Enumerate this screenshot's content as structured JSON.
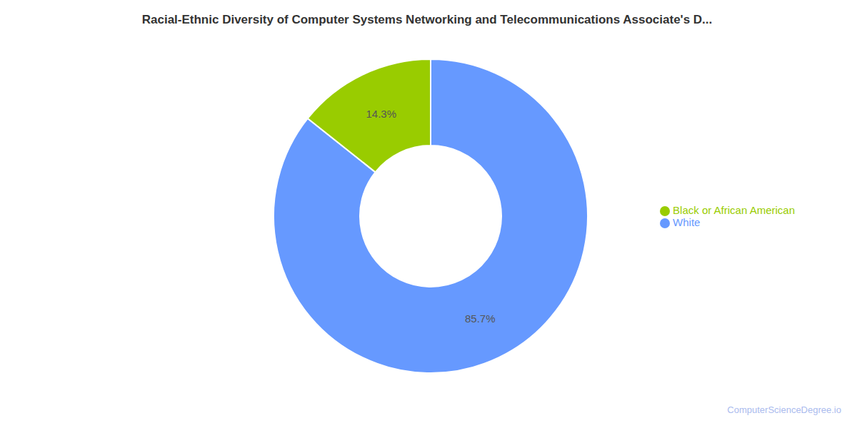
{
  "chart_data": {
    "type": "pie",
    "title": "Racial-Ethnic Diversity of Computer Systems Networking and Telecommunications Associate's D...",
    "categories": [
      "White",
      "Black or African American"
    ],
    "values": [
      85.7,
      14.3
    ],
    "colors": [
      "#6699ff",
      "#99cc00"
    ],
    "data_labels": true,
    "value_labels": [
      "85.7%",
      "14.3%"
    ],
    "legend": "right",
    "annotations": [
      "ComputerScienceDegree.io"
    ]
  }
}
